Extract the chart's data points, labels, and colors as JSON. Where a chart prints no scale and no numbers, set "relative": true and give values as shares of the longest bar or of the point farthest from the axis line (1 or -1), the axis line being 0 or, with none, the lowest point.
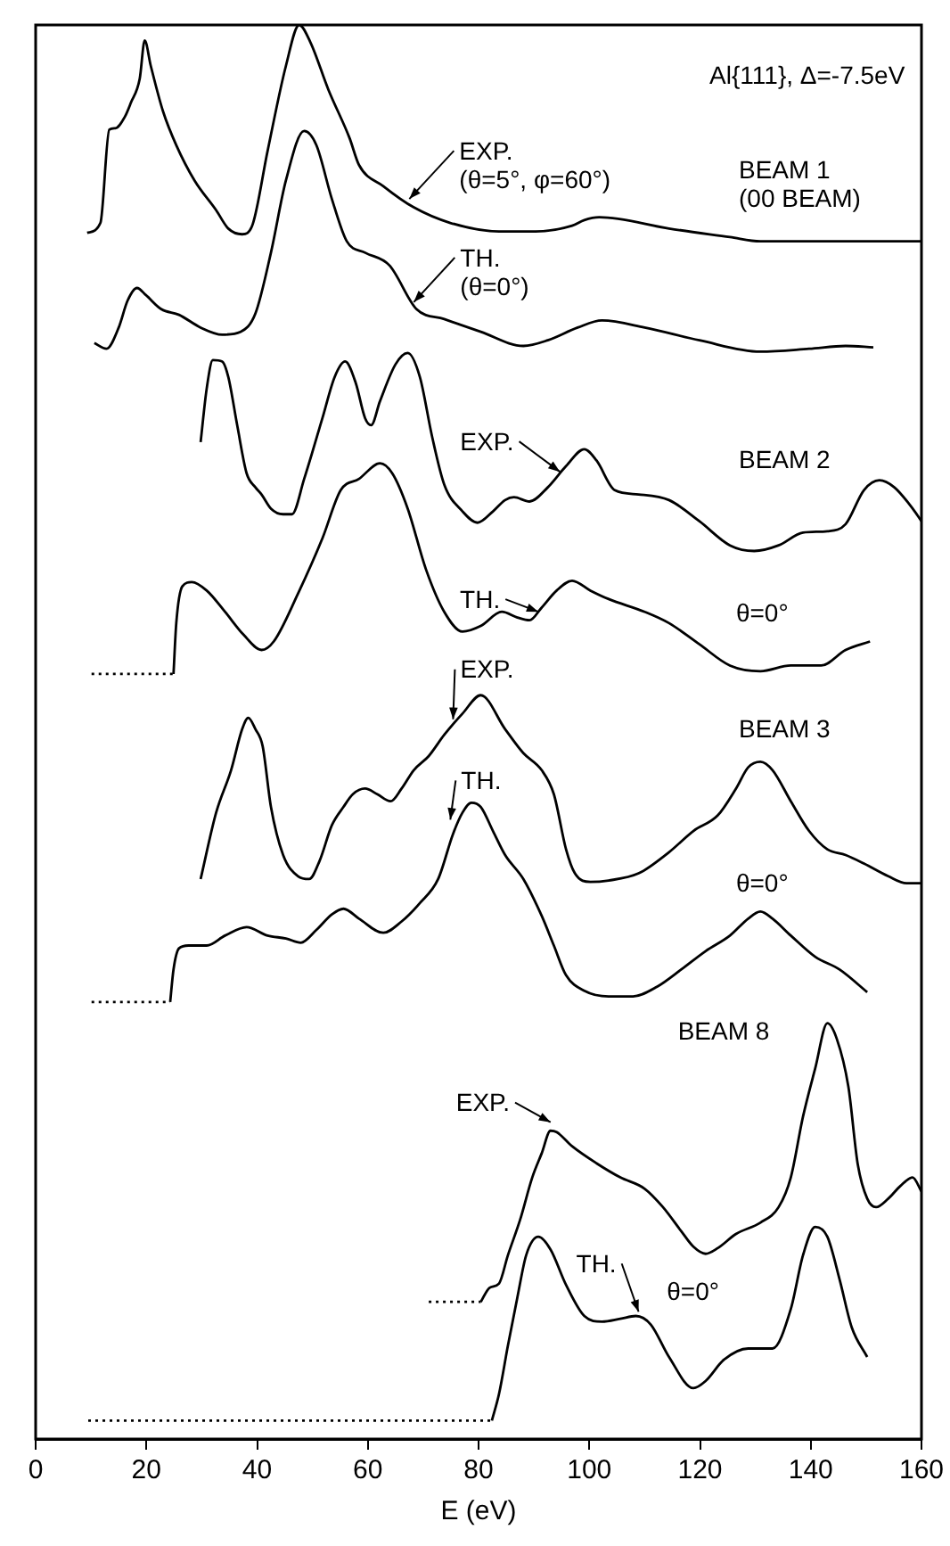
{
  "chart_data": {
    "type": "line",
    "xlabel": "E (eV)",
    "xlim": [
      0,
      160
    ],
    "xticks": [
      0,
      20,
      40,
      60,
      80,
      100,
      120,
      140,
      160
    ],
    "relative": true,
    "series": [
      {
        "color": "#000000",
        "x": [
          9.3,
          11.7,
          13.3,
          14.4,
          16.1,
          17.2,
          18.8,
          19.7,
          20.8,
          23.0,
          25.4,
          28.7,
          32.6,
          34.8,
          37.3,
          39.2,
          41.9,
          45.2,
          47.6,
          49.6,
          52.9,
          56.7,
          58.4,
          62.8,
          68.3,
          74.9,
          83.7,
          90.3,
          96.9,
          99.1,
          101.8,
          114.4,
          125.4,
          130.9,
          160
        ],
        "values": [
          0.853,
          0.86,
          0.926,
          0.927,
          0.935,
          0.945,
          0.962,
          0.989,
          0.971,
          0.939,
          0.915,
          0.89,
          0.869,
          0.856,
          0.852,
          0.859,
          0.911,
          0.971,
          1,
          0.988,
          0.954,
          0.92,
          0.901,
          0.886,
          0.871,
          0.86,
          0.854,
          0.854,
          0.858,
          0.862,
          0.864,
          0.856,
          0.85,
          0.847,
          0.847
        ]
      },
      {
        "color": "#000000",
        "x": [
          10.6,
          12.8,
          15.0,
          16.6,
          18.3,
          19.9,
          22.7,
          25.9,
          29.8,
          33.7,
          37.0,
          39.7,
          42.5,
          45.2,
          48.5,
          50.7,
          53.5,
          56.2,
          59.5,
          63.9,
          68.8,
          73.8,
          80.4,
          88.1,
          92.5,
          97.9,
          102.3,
          110.0,
          119.9,
          130.9,
          139.7,
          146.3,
          151.3
        ],
        "values": [
          0.775,
          0.771,
          0.786,
          0.805,
          0.814,
          0.809,
          0.799,
          0.795,
          0.786,
          0.781,
          0.783,
          0.796,
          0.839,
          0.89,
          0.925,
          0.915,
          0.877,
          0.847,
          0.839,
          0.83,
          0.799,
          0.792,
          0.783,
          0.773,
          0.777,
          0.786,
          0.791,
          0.786,
          0.777,
          0.769,
          0.771,
          0.773,
          0.772
        ]
      },
      {
        "color": "#000000",
        "x": [
          29.8,
          30.9,
          32.0,
          33.7,
          34.8,
          36.4,
          38.1,
          39.7,
          40.8,
          42.5,
          44.7,
          46.3,
          48.5,
          51.8,
          54.0,
          55.9,
          57.8,
          59.5,
          60.6,
          62.2,
          65.0,
          67.2,
          69.4,
          71.6,
          73.8,
          77.1,
          79.8,
          82.6,
          84.8,
          86.4,
          89.2,
          92.5,
          95.8,
          99.1,
          101.3,
          104.6,
          108.9,
          114.4,
          119.9,
          125.4,
          129.8,
          134.2,
          138.6,
          143.0,
          146.3,
          149.6,
          152.4,
          155.1,
          158.4,
          160
        ],
        "values": [
          0.705,
          0.743,
          0.763,
          0.762,
          0.751,
          0.717,
          0.683,
          0.673,
          0.668,
          0.658,
          0.654,
          0.654,
          0.679,
          0.722,
          0.751,
          0.762,
          0.747,
          0.722,
          0.717,
          0.734,
          0.76,
          0.768,
          0.751,
          0.709,
          0.675,
          0.656,
          0.648,
          0.656,
          0.664,
          0.666,
          0.663,
          0.673,
          0.688,
          0.7,
          0.692,
          0.671,
          0.668,
          0.664,
          0.649,
          0.632,
          0.628,
          0.632,
          0.641,
          0.642,
          0.647,
          0.671,
          0.678,
          0.673,
          0.658,
          0.649
        ]
      },
      {
        "color": "#000000",
        "line_style": "dotted",
        "x": [
          10.1,
          24.9
        ],
        "values": [
          0.541,
          0.541
        ]
      },
      {
        "color": "#000000",
        "x": [
          24.9,
          25.4,
          26.5,
          28.2,
          30.9,
          34.2,
          37.5,
          40.8,
          43.0,
          47.4,
          51.8,
          55.1,
          58.4,
          62.2,
          64.4,
          67.2,
          70.5,
          73.8,
          77.1,
          80.4,
          84.2,
          87.0,
          89.2,
          91.4,
          94.1,
          96.9,
          100.2,
          103.5,
          110.0,
          114.4,
          119.9,
          125.4,
          130.9,
          136.4,
          141.9,
          146.3,
          150.7
        ],
        "values": [
          0.541,
          0.577,
          0.603,
          0.606,
          0.6,
          0.585,
          0.569,
          0.558,
          0.564,
          0.598,
          0.637,
          0.671,
          0.679,
          0.69,
          0.683,
          0.658,
          0.615,
          0.585,
          0.571,
          0.575,
          0.585,
          0.581,
          0.579,
          0.588,
          0.6,
          0.607,
          0.6,
          0.594,
          0.585,
          0.577,
          0.562,
          0.547,
          0.543,
          0.547,
          0.547,
          0.558,
          0.564
        ]
      },
      {
        "color": "#000000",
        "x": [
          29.8,
          32.6,
          35.3,
          37.3,
          38.4,
          39.7,
          41.0,
          42.5,
          44.7,
          47.4,
          49.4,
          51.3,
          53.5,
          55.6,
          57.3,
          59.5,
          61.7,
          64.1,
          66.1,
          68.3,
          71.0,
          73.8,
          77.1,
          80.4,
          84.8,
          88.1,
          91.4,
          93.6,
          95.8,
          97.4,
          100.2,
          103.5,
          108.9,
          114.4,
          118.8,
          123.2,
          126.5,
          128.7,
          130.9,
          133.1,
          136.4,
          139.7,
          143.0,
          146.3,
          149.6,
          154.0,
          157.3,
          160
        ],
        "values": [
          0.396,
          0.443,
          0.473,
          0.502,
          0.51,
          0.502,
          0.49,
          0.447,
          0.413,
          0.398,
          0.396,
          0.409,
          0.434,
          0.447,
          0.456,
          0.46,
          0.456,
          0.451,
          0.46,
          0.473,
          0.483,
          0.498,
          0.513,
          0.526,
          0.502,
          0.485,
          0.473,
          0.456,
          0.417,
          0.4,
          0.394,
          0.395,
          0.4,
          0.415,
          0.43,
          0.441,
          0.46,
          0.475,
          0.479,
          0.473,
          0.451,
          0.43,
          0.417,
          0.413,
          0.407,
          0.398,
          0.393,
          0.393
        ]
      },
      {
        "color": "#000000",
        "line_style": "dotted",
        "x": [
          10.1,
          24.3
        ],
        "values": [
          0.309,
          0.309
        ]
      },
      {
        "color": "#000000",
        "x": [
          24.3,
          24.9,
          25.9,
          27.6,
          30.9,
          34.2,
          38.1,
          41.9,
          45.2,
          47.9,
          50.7,
          53.5,
          55.6,
          58.4,
          62.8,
          66.1,
          69.4,
          72.7,
          75.4,
          77.1,
          78.7,
          80.4,
          82.6,
          84.8,
          88.1,
          91.4,
          93.6,
          95.8,
          99.1,
          103.5,
          107.9,
          112.3,
          116.6,
          121.0,
          125.4,
          128.7,
          130.9,
          133.1,
          136.4,
          140.8,
          145.2,
          150.2
        ],
        "values": [
          0.309,
          0.332,
          0.347,
          0.349,
          0.349,
          0.356,
          0.362,
          0.356,
          0.354,
          0.351,
          0.36,
          0.371,
          0.375,
          0.368,
          0.358,
          0.366,
          0.379,
          0.396,
          0.428,
          0.443,
          0.45,
          0.447,
          0.43,
          0.413,
          0.396,
          0.37,
          0.349,
          0.328,
          0.317,
          0.313,
          0.313,
          0.32,
          0.332,
          0.345,
          0.356,
          0.368,
          0.373,
          0.368,
          0.356,
          0.341,
          0.332,
          0.316
        ]
      },
      {
        "color": "#000000",
        "line_style": "dotted",
        "x": [
          71.0,
          80.4
        ],
        "values": [
          0.097,
          0.097
        ]
      },
      {
        "color": "#000000",
        "x": [
          80.4,
          82.0,
          83.7,
          85.3,
          87.5,
          89.7,
          91.4,
          93.0,
          94.1,
          96.9,
          101.3,
          105.6,
          110.0,
          113.3,
          116.6,
          118.8,
          121.0,
          123.2,
          126.5,
          130.9,
          134.2,
          136.4,
          138.6,
          140.8,
          143.0,
          144.7,
          146.8,
          148.5,
          150.2,
          151.8,
          154.0,
          156.2,
          158.4,
          160
        ],
        "values": [
          0.097,
          0.107,
          0.11,
          0.13,
          0.155,
          0.185,
          0.202,
          0.218,
          0.217,
          0.207,
          0.195,
          0.185,
          0.177,
          0.164,
          0.147,
          0.136,
          0.131,
          0.135,
          0.145,
          0.153,
          0.164,
          0.185,
          0.228,
          0.262,
          0.294,
          0.283,
          0.249,
          0.194,
          0.17,
          0.164,
          0.17,
          0.179,
          0.185,
          0.175
        ]
      },
      {
        "color": "#000000",
        "line_style": "dotted",
        "x": [
          9.5,
          82.4
        ],
        "values": [
          0.013,
          0.013
        ]
      },
      {
        "color": "#000000",
        "x": [
          82.4,
          83.7,
          85.3,
          87.0,
          88.6,
          90.8,
          93.0,
          95.8,
          99.1,
          102.3,
          105.6,
          108.4,
          111.1,
          114.4,
          118.8,
          121.0,
          124.3,
          128.7,
          133.1,
          136.4,
          138.6,
          140.8,
          143.0,
          145.2,
          147.4,
          150.2
        ],
        "values": [
          0.013,
          0.032,
          0.066,
          0.1,
          0.13,
          0.143,
          0.134,
          0.109,
          0.087,
          0.083,
          0.085,
          0.087,
          0.081,
          0.058,
          0.036,
          0.041,
          0.056,
          0.064,
          0.064,
          0.092,
          0.13,
          0.15,
          0.143,
          0.113,
          0.079,
          0.058
        ]
      }
    ],
    "annotations": [
      "Al{111}, Δ=-7.5eV",
      "BEAM 1\n(00 BEAM)",
      "BEAM 2",
      "θ=0°",
      "BEAM 3",
      "θ=0°",
      "BEAM 8",
      "θ=0°",
      {
        "text": "EXP.\n(θ=5°, φ=60°)",
        "x": 67.5,
        "y": 0.877
      },
      {
        "text": "TH.\n(θ=0°)",
        "x": 68.3,
        "y": 0.804
      },
      {
        "text": "EXP.",
        "x": 94.7,
        "y": 0.684
      },
      {
        "text": "TH.",
        "x": 90.8,
        "y": 0.585
      },
      {
        "text": "EXP.",
        "x": 75.4,
        "y": 0.509
      },
      {
        "text": "TH.",
        "x": 74.9,
        "y": 0.438
      },
      {
        "text": "EXP.",
        "x": 93.0,
        "y": 0.224
      },
      {
        "text": "TH.",
        "x": 108.9,
        "y": 0.09
      }
    ]
  }
}
